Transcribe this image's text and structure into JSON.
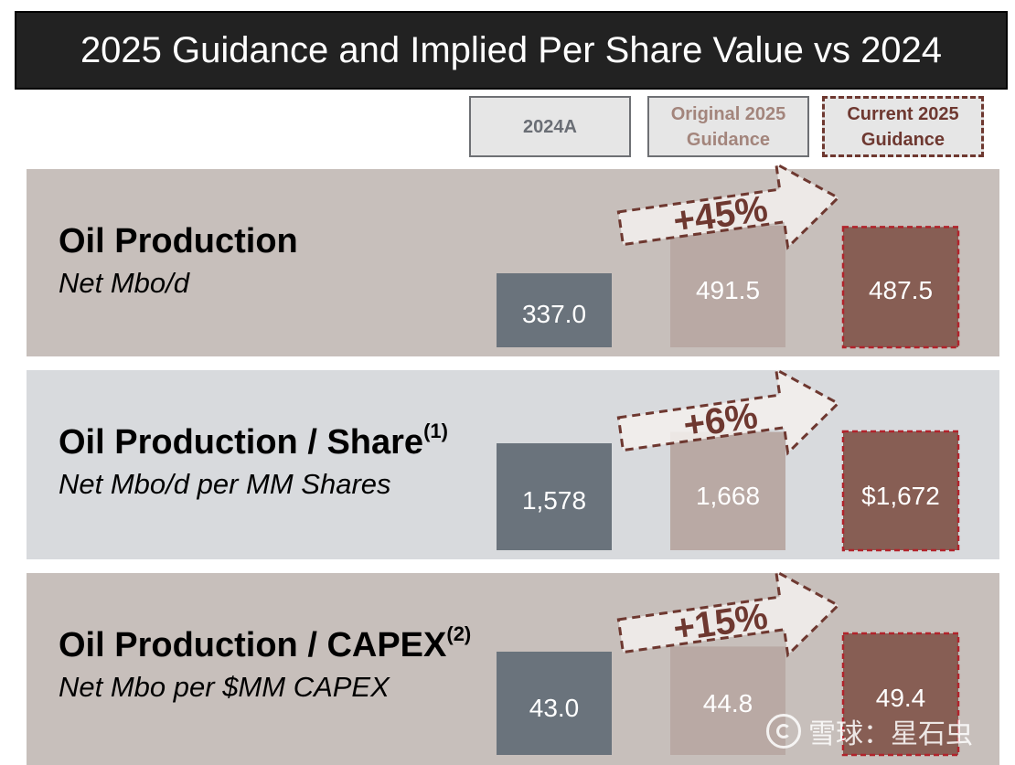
{
  "title": "2025 Guidance and Implied Per Share Value vs 2024",
  "column_headers": {
    "a2024": "2024A",
    "original": "Original 2025 Guidance",
    "current": "Current 2025 Guidance"
  },
  "colors": {
    "row_dark_bg": "#c7bfbb",
    "row_light_bg": "#d8dadd",
    "bar_2024": "#6a737c",
    "bar_original": "#b9a9a4",
    "bar_current": "#875e54",
    "current_border": "#b1232b",
    "arrow_fill": "#f2efed",
    "arrow_border": "#6e3830",
    "pct_text": "#6e3830"
  },
  "watermark": "雪球：星石虫",
  "chart_data": [
    {
      "type": "bar",
      "title": "Oil Production",
      "subtitle": "Net Mbo/d",
      "footnote": "",
      "categories": [
        "2024A",
        "Original 2025 Guidance",
        "Current 2025 Guidance"
      ],
      "values": [
        337.0,
        491.5,
        487.5
      ],
      "labels": [
        "337.0",
        "491.5",
        "487.5"
      ],
      "change_label": "+45%"
    },
    {
      "type": "bar",
      "title": "Oil Production / Share",
      "subtitle": "Net Mbo/d per MM Shares",
      "footnote": "(1)",
      "categories": [
        "2024A",
        "Original 2025 Guidance",
        "Current 2025 Guidance"
      ],
      "values": [
        1578,
        1668,
        1672
      ],
      "labels": [
        "1,578",
        "1,668",
        "$1,672"
      ],
      "change_label": "+6%"
    },
    {
      "type": "bar",
      "title": "Oil Production / CAPEX",
      "subtitle": "Net Mbo per $MM CAPEX",
      "footnote": "(2)",
      "categories": [
        "2024A",
        "Original 2025 Guidance",
        "Current 2025 Guidance"
      ],
      "values": [
        43.0,
        44.8,
        49.4
      ],
      "labels": [
        "43.0",
        "44.8",
        "49.4"
      ],
      "change_label": "+15%"
    }
  ]
}
